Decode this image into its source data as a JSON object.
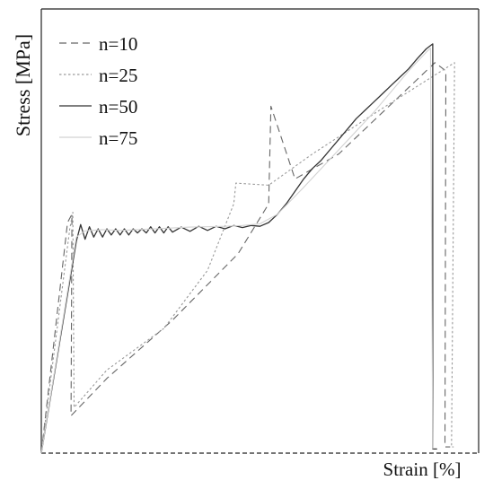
{
  "chart_data": {
    "type": "line",
    "title": "",
    "xlabel": "Strain [%]",
    "ylabel": "Stress [MPa]",
    "xlim": [
      0,
      100
    ],
    "ylim": [
      0,
      100
    ],
    "axis_ticks": "none (no numeric tick labels shown)",
    "grid": false,
    "legend_position": "top-left",
    "series": [
      {
        "name": "n=10",
        "style": "dashed",
        "color": "#666666",
        "x": [
          0,
          6.0,
          7.0,
          6.8,
          15,
          30,
          45,
          52,
          52.5,
          58,
          68,
          90,
          92.5,
          92.3,
          93.5
        ],
        "y": [
          0,
          55.5,
          57.5,
          9.0,
          18,
          32,
          48,
          60,
          83.5,
          66,
          72,
          94,
          92.0,
          1.5,
          1.5
        ]
      },
      {
        "name": "n=25",
        "style": "dotted",
        "color": "#9a9a9a",
        "x": [
          0,
          6.5,
          7.2,
          7.5,
          15,
          28,
          38,
          44,
          44.5,
          52,
          62,
          78,
          94.5,
          93.8,
          94.3
        ],
        "y": [
          0,
          54,
          58,
          11.0,
          20,
          30,
          44,
          60,
          65,
          64.5,
          72,
          83,
          94,
          1.5,
          1.5
        ]
      },
      {
        "name": "n=50",
        "style": "solid",
        "color": "#333333",
        "x": [
          0,
          8,
          9,
          10,
          11,
          12,
          13,
          14,
          15,
          16,
          17,
          18,
          19,
          20,
          21,
          22,
          23,
          24,
          25,
          26,
          27,
          28,
          29,
          30,
          32,
          34,
          36,
          38,
          40,
          42,
          44,
          46,
          48,
          50,
          52,
          54,
          56,
          58,
          60,
          62,
          64,
          66,
          68,
          70,
          72,
          74,
          76,
          78,
          80,
          82,
          84,
          86,
          88,
          89.5,
          89.5,
          90.5
        ],
        "y": [
          0,
          51,
          55,
          51.5,
          54.5,
          52,
          54,
          52,
          54,
          52.5,
          54,
          52.5,
          54,
          52.5,
          54,
          53,
          54,
          53,
          54.5,
          53,
          54.5,
          53,
          54.5,
          53.2,
          54.4,
          53.4,
          54.6,
          53.6,
          54.6,
          54,
          54.8,
          54.3,
          54.8,
          54.6,
          55.5,
          57.5,
          60,
          63,
          66,
          68.5,
          70.5,
          73,
          75.5,
          78,
          80.5,
          82.5,
          84.5,
          86.5,
          88.5,
          90.5,
          92.5,
          95,
          97.3,
          98.5,
          1.0,
          1.0
        ]
      },
      {
        "name": "n=75",
        "style": "solid",
        "color": "#d2d2d2",
        "x": [
          0,
          8,
          10,
          14,
          18,
          22,
          26,
          30,
          34,
          38,
          42,
          46,
          50,
          54,
          60,
          68,
          76,
          84,
          88,
          89,
          89.5
        ],
        "y": [
          0,
          52,
          53.5,
          53.8,
          53.6,
          53.8,
          54,
          54.2,
          54.4,
          54.5,
          54.6,
          54.8,
          55.2,
          57.5,
          64,
          73,
          82,
          92,
          96.5,
          97.5,
          1.0
        ]
      }
    ]
  }
}
